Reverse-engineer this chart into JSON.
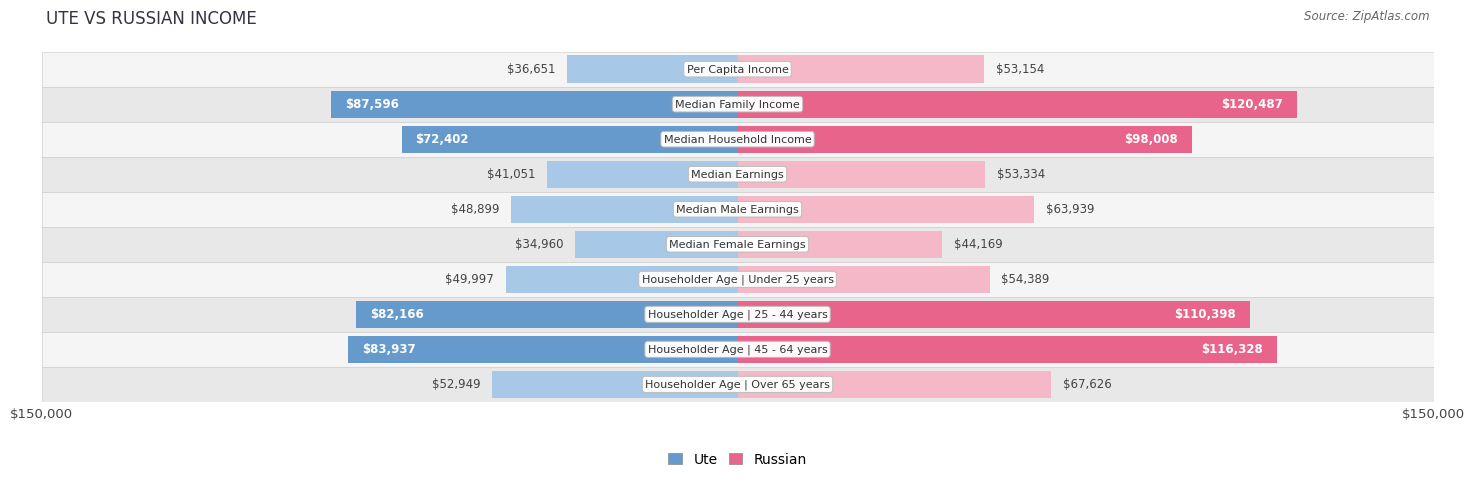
{
  "title": "UTE VS RUSSIAN INCOME",
  "source": "Source: ZipAtlas.com",
  "categories": [
    "Per Capita Income",
    "Median Family Income",
    "Median Household Income",
    "Median Earnings",
    "Median Male Earnings",
    "Median Female Earnings",
    "Householder Age | Under 25 years",
    "Householder Age | 25 - 44 years",
    "Householder Age | 45 - 64 years",
    "Householder Age | Over 65 years"
  ],
  "ute_values": [
    36651,
    87596,
    72402,
    41051,
    48899,
    34960,
    49997,
    82166,
    83937,
    52949
  ],
  "russian_values": [
    53154,
    120487,
    98008,
    53334,
    63939,
    44169,
    54389,
    110398,
    116328,
    67626
  ],
  "ute_labels": [
    "$36,651",
    "$87,596",
    "$72,402",
    "$41,051",
    "$48,899",
    "$34,960",
    "$49,997",
    "$82,166",
    "$83,937",
    "$52,949"
  ],
  "russian_labels": [
    "$53,154",
    "$120,487",
    "$98,008",
    "$53,334",
    "$63,939",
    "$44,169",
    "$54,389",
    "$110,398",
    "$116,328",
    "$67,626"
  ],
  "ute_color_light": "#a8c8e8",
  "ute_color_dark": "#6699cc",
  "russian_color_light": "#f5b8c8",
  "russian_color_dark": "#e8648a",
  "max_value": 150000,
  "bg_color": "#ffffff",
  "row_bg_even": "#f5f5f5",
  "row_bg_odd": "#e8e8e8",
  "row_border": "#d0d0d0",
  "label_fontsize": 8.5,
  "title_fontsize": 12,
  "source_fontsize": 8.5,
  "axis_label": "$150,000",
  "ute_inside_threshold": 60000,
  "russian_inside_threshold": 80000
}
